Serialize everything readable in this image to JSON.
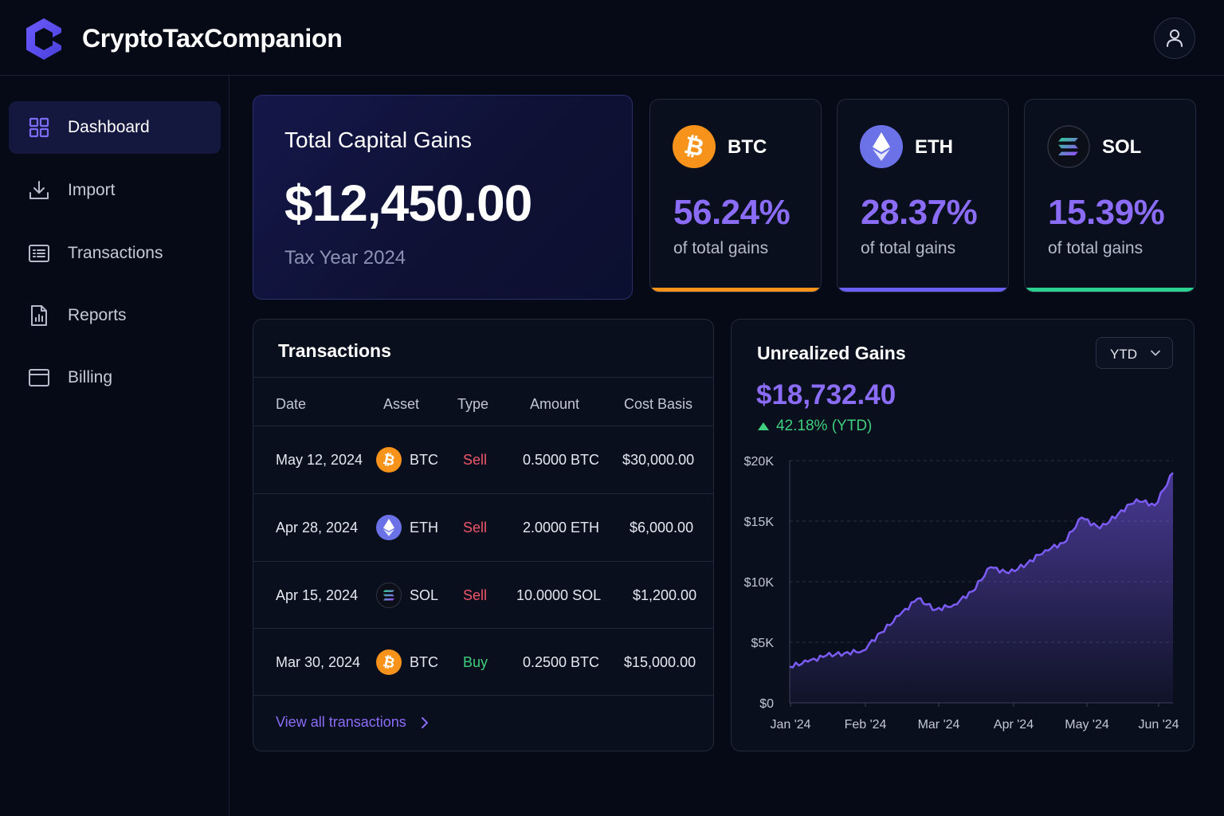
{
  "header": {
    "app_title": "CryptoTaxCompanion",
    "logo_icon": "hexagon-c-logo",
    "profile_icon": "user-icon"
  },
  "sidebar": {
    "items": [
      {
        "label": "Dashboard",
        "icon": "grid-icon",
        "active": true
      },
      {
        "label": "Import",
        "icon": "download-icon",
        "active": false
      },
      {
        "label": "Transactions",
        "icon": "list-icon",
        "active": false
      },
      {
        "label": "Reports",
        "icon": "report-icon",
        "active": false
      },
      {
        "label": "Billing",
        "icon": "card-icon",
        "active": false
      }
    ]
  },
  "summary": {
    "label": "Total Capital Gains",
    "value": "$12,450.00",
    "sub": "Tax Year 2024"
  },
  "assets": [
    {
      "symbol": "BTC",
      "pct": "56.24%",
      "sub": "of total gains",
      "color": "#f7931a"
    },
    {
      "symbol": "ETH",
      "pct": "28.37%",
      "sub": "of total gains",
      "color": "#6a5ff5"
    },
    {
      "symbol": "SOL",
      "pct": "15.39%",
      "sub": "of total gains",
      "color": "#2bd18f"
    }
  ],
  "transactions": {
    "title": "Transactions",
    "columns": [
      "Date",
      "Asset",
      "Type",
      "Amount",
      "Cost Basis"
    ],
    "rows": [
      {
        "date": "May 12, 2024",
        "asset": "BTC",
        "type": "Sell",
        "amount": "0.5000 BTC",
        "cost_basis": "$30,000.00"
      },
      {
        "date": "Apr 28, 2024",
        "asset": "ETH",
        "type": "Sell",
        "amount": "2.0000 ETH",
        "cost_basis": "$6,000.00"
      },
      {
        "date": "Apr 15, 2024",
        "asset": "SOL",
        "type": "Sell",
        "amount": "10.0000 SOL",
        "cost_basis": "$1,200.00"
      },
      {
        "date": "Mar 30, 2024",
        "asset": "BTC",
        "type": "Buy",
        "amount": "0.2500 BTC",
        "cost_basis": "$15,000.00"
      }
    ],
    "view_all": "View all transactions"
  },
  "unrealized": {
    "title": "Unrealized Gains",
    "period": "YTD",
    "value": "$18,732.40",
    "change": "42.18% (YTD)"
  },
  "chart_data": {
    "type": "area",
    "title": "",
    "xlabel": "",
    "ylabel": "",
    "x_ticks": [
      "Jan '24",
      "Feb '24",
      "Mar '24",
      "Apr '24",
      "May '24",
      "Jun '24"
    ],
    "y_ticks": [
      "$0",
      "$5K",
      "$10K",
      "$15K",
      "$20K"
    ],
    "ylim": [
      0,
      20000
    ],
    "grid": true,
    "color": "#7c5cf5",
    "series": [
      {
        "x": [
          "Jan '24",
          "Jan '24",
          "Jan '24",
          "Jan '24",
          "Feb '24",
          "Feb '24",
          "Feb '24",
          "Feb '24",
          "Mar '24",
          "Mar '24",
          "Mar '24",
          "Mar '24",
          "Apr '24",
          "Apr '24",
          "Apr '24",
          "Apr '24",
          "May '24",
          "May '24",
          "May '24",
          "May '24",
          "Jun '24",
          "Jun '24"
        ],
        "values": [
          3000,
          3400,
          3900,
          4100,
          4300,
          5800,
          7200,
          8600,
          7700,
          8100,
          9200,
          11200,
          10700,
          11500,
          12600,
          13200,
          15300,
          14400,
          15600,
          16800,
          16300,
          19000
        ]
      }
    ]
  }
}
